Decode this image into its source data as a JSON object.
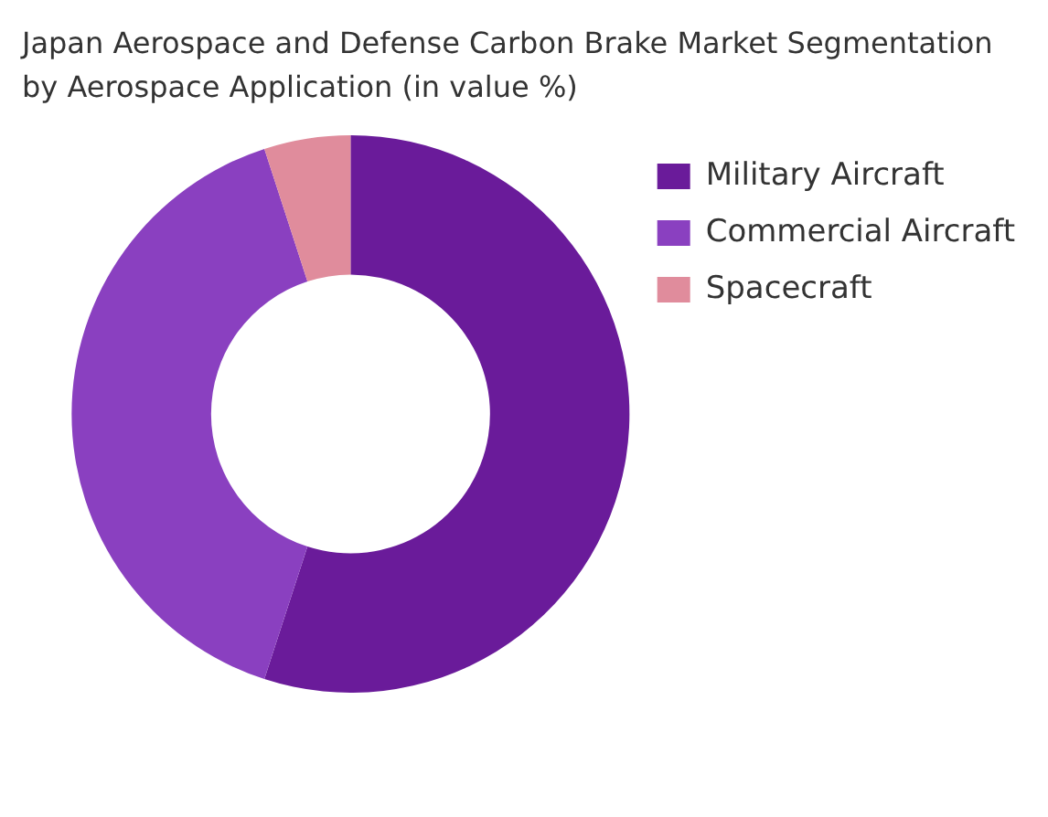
{
  "chart_data": {
    "type": "donut",
    "title": "Japan Aerospace and Defense Carbon Brake Market Segmentation by Aerospace Application (in value %)",
    "categories": [
      "Military Aircraft",
      "Commercial Aircraft",
      "Spacecraft"
    ],
    "values": [
      55,
      40,
      5
    ],
    "colors": [
      "#6a1b9a",
      "#8a40c0",
      "#e08c9c"
    ],
    "legend": "right"
  }
}
